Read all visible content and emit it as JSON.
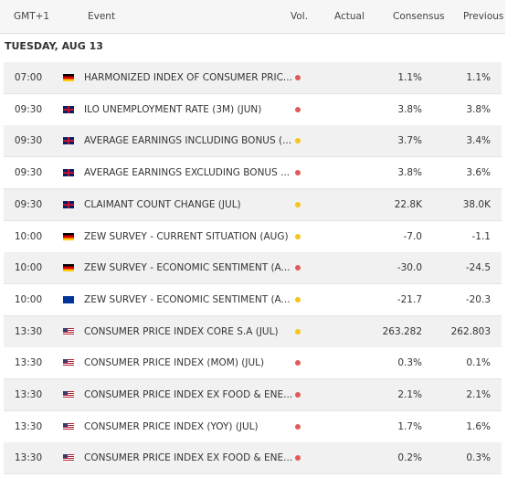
{
  "header": {
    "columns": [
      "GMT+1",
      "Event",
      "Vol.",
      "Actual",
      "Consensus",
      "Previous"
    ]
  },
  "date": "TUESDAY, AUG 13",
  "rows": [
    {
      "time": "07:00",
      "flag": "de",
      "event": "HARMONIZED INDEX OF CONSUMER PRIC...",
      "vol": "#e05a5a",
      "actual": "",
      "consensus": "1.1%",
      "previous": "1.1%"
    },
    {
      "time": "09:30",
      "flag": "gb",
      "event": "ILO UNEMPLOYMENT RATE (3M) (JUN)",
      "vol": "#e05a5a",
      "actual": "",
      "consensus": "3.8%",
      "previous": "3.8%"
    },
    {
      "time": "09:30",
      "flag": "gb",
      "event": "AVERAGE EARNINGS INCLUDING BONUS (...",
      "vol": "#f5c518",
      "actual": "",
      "consensus": "3.7%",
      "previous": "3.4%"
    },
    {
      "time": "09:30",
      "flag": "gb",
      "event": "AVERAGE EARNINGS EXCLUDING BONUS ...",
      "vol": "#e05a5a",
      "actual": "",
      "consensus": "3.8%",
      "previous": "3.6%"
    },
    {
      "time": "09:30",
      "flag": "gb",
      "event": "CLAIMANT COUNT CHANGE (JUL)",
      "vol": "#f5c518",
      "actual": "",
      "consensus": "22.8K",
      "previous": "38.0K"
    },
    {
      "time": "10:00",
      "flag": "de",
      "event": "ZEW SURVEY - CURRENT SITUATION (AUG)",
      "vol": "#f5c518",
      "actual": "",
      "consensus": "-7.0",
      "previous": "-1.1"
    },
    {
      "time": "10:00",
      "flag": "de",
      "event": "ZEW SURVEY - ECONOMIC SENTIMENT (A...",
      "vol": "#e05a5a",
      "actual": "",
      "consensus": "-30.0",
      "previous": "-24.5"
    },
    {
      "time": "10:00",
      "flag": "eu",
      "event": "ZEW SURVEY - ECONOMIC SENTIMENT (A...",
      "vol": "#f5c518",
      "actual": "",
      "consensus": "-21.7",
      "previous": "-20.3"
    },
    {
      "time": "13:30",
      "flag": "us",
      "event": "CONSUMER PRICE INDEX CORE S.A (JUL)",
      "vol": "#f5c518",
      "actual": "",
      "consensus": "263.282",
      "previous": "262.803"
    },
    {
      "time": "13:30",
      "flag": "us",
      "event": "CONSUMER PRICE INDEX (MOM) (JUL)",
      "vol": "#e05a5a",
      "actual": "",
      "consensus": "0.3%",
      "previous": "0.1%"
    },
    {
      "time": "13:30",
      "flag": "us",
      "event": "CONSUMER PRICE INDEX EX FOOD & ENE...",
      "vol": "#e05a5a",
      "actual": "",
      "consensus": "2.1%",
      "previous": "2.1%"
    },
    {
      "time": "13:30",
      "flag": "us",
      "event": "CONSUMER PRICE INDEX (YOY) (JUL)",
      "vol": "#e05a5a",
      "actual": "",
      "consensus": "1.7%",
      "previous": "1.6%"
    },
    {
      "time": "13:30",
      "flag": "us",
      "event": "CONSUMER PRICE INDEX EX FOOD & ENE...",
      "vol": "#e05a5a",
      "actual": "",
      "consensus": "0.2%",
      "previous": "0.3%"
    }
  ]
}
